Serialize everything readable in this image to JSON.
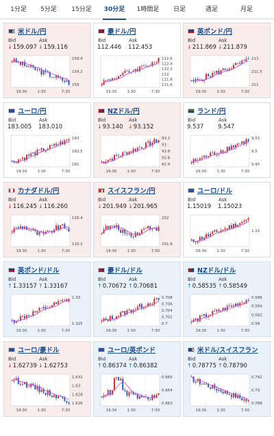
{
  "tabs": [
    {
      "label": "1分足",
      "active": false
    },
    {
      "label": "5分足",
      "active": false
    },
    {
      "label": "15分足",
      "active": false
    },
    {
      "label": "30分足",
      "active": true
    },
    {
      "label": "1時間足",
      "active": false
    },
    {
      "label": "日足",
      "active": false
    },
    {
      "label": "週足",
      "active": false
    },
    {
      "label": "月足",
      "active": false
    }
  ],
  "colors": {
    "accent": "#1a4d8f",
    "down_card": "#fbecec",
    "up_card": "#e9f2fb",
    "price_down": "#d23a3a",
    "price_up": "#2d6ccf",
    "candle_up": "#d62a2a",
    "candle_down": "#2a55c9",
    "moving_average": "#c24fcf"
  },
  "labels": {
    "bid": "Bid",
    "ask": "Ask"
  },
  "cards": [
    {
      "pair": "米ドル/円",
      "flag": "us",
      "state": "down",
      "direction": "down",
      "bid": "159.097",
      "ask": "159.116",
      "y_ticks": [
        "159.4",
        "159.2",
        "159"
      ],
      "x_ticks": [
        "19:30",
        "1:30",
        "7:30"
      ],
      "trend": "fall"
    },
    {
      "pair": "豪ドル/円",
      "flag": "au",
      "state": "neutral",
      "direction": "",
      "bid": "112.446",
      "ask": "112.453",
      "y_ticks": [
        "112.6",
        "112.4",
        "112.2",
        "112",
        "111.8",
        "111.6"
      ],
      "x_ticks": [
        "19:30",
        "1:30",
        "7:30"
      ],
      "trend": "rise"
    },
    {
      "pair": "英ポンド/円",
      "flag": "gb",
      "state": "down",
      "direction": "down",
      "bid": "211.869",
      "ask": "211.879",
      "y_ticks": [
        "212",
        "211.5",
        "211"
      ],
      "x_ticks": [
        "19:30",
        "1:30",
        "7:30"
      ],
      "trend": "rise"
    },
    {
      "pair": "ユーロ/円",
      "flag": "eu",
      "state": "neutral",
      "direction": "",
      "bid": "183.005",
      "ask": "183.010",
      "y_ticks": [
        "183",
        "182.5",
        "182"
      ],
      "x_ticks": [
        "19:30",
        "1:30",
        "7:30"
      ],
      "trend": "rise"
    },
    {
      "pair": "NZドル/円",
      "flag": "nz",
      "state": "down",
      "direction": "down",
      "bid": "93.140",
      "ask": "93.152",
      "y_ticks": [
        "93.2",
        "93",
        "92.8",
        "92.6",
        "92.4"
      ],
      "x_ticks": [
        "19:30",
        "1:30",
        "7:30"
      ],
      "trend": "rise"
    },
    {
      "pair": "ランド/円",
      "flag": "za",
      "state": "neutral",
      "direction": "",
      "bid": "9.537",
      "ask": "9.547",
      "y_ticks": [
        "9.55",
        "9.5",
        "9.45"
      ],
      "x_ticks": [
        "19:30",
        "1:30",
        "7:30"
      ],
      "trend": "rise"
    },
    {
      "pair": "カナダドル/円",
      "flag": "ca",
      "state": "down",
      "direction": "down",
      "bid": "116.245",
      "ask": "116.260",
      "y_ticks": [
        "116.4",
        "116.2"
      ],
      "x_ticks": [
        "19:30",
        "1:30",
        "7:30"
      ],
      "trend": "flat"
    },
    {
      "pair": "スイスフラン/円",
      "flag": "ch",
      "state": "down",
      "direction": "down",
      "bid": "201.949",
      "ask": "201.965",
      "y_ticks": [
        "202",
        "201.8"
      ],
      "x_ticks": [
        "19:30",
        "1:30",
        "7:30"
      ],
      "trend": "flat"
    },
    {
      "pair": "ユーロ/ドル",
      "flag": "eu",
      "state": "neutral",
      "direction": "",
      "bid": "1.15019",
      "ask": "1.15023",
      "y_ticks": [
        "1.15"
      ],
      "x_ticks": [
        "19:30",
        "1:30",
        "7:30"
      ],
      "trend": "rise"
    },
    {
      "pair": "英ポンド/ドル",
      "flag": "gb",
      "state": "up",
      "direction": "up",
      "bid": "1.33157",
      "ask": "1.33167",
      "y_ticks": [
        "1.33",
        "1.325"
      ],
      "x_ticks": [
        "19:30",
        "1:30",
        "7:30"
      ],
      "trend": "rise"
    },
    {
      "pair": "豪ドル/ドル",
      "flag": "au",
      "state": "up",
      "direction": "up",
      "bid": "0.70672",
      "ask": "0.70681",
      "y_ticks": [
        "0.708",
        "0.706",
        "0.704",
        "0.702",
        "0.7"
      ],
      "x_ticks": [
        "19:30",
        "1:30",
        "7:30"
      ],
      "trend": "rise"
    },
    {
      "pair": "NZドル/ドル",
      "flag": "nz",
      "state": "up",
      "direction": "up",
      "bid": "0.58535",
      "ask": "0.58549",
      "y_ticks": [
        "0.586",
        "0.584",
        "0.582",
        "0.58"
      ],
      "x_ticks": [
        "19:30",
        "1:30",
        "7:30"
      ],
      "trend": "rise"
    },
    {
      "pair": "ユーロ/豪ドル",
      "flag": "eu",
      "state": "down",
      "direction": "down",
      "bid": "1.62739",
      "ask": "1.62753",
      "y_ticks": [
        "1.632",
        "1.63",
        "1.628",
        "1.626"
      ],
      "x_ticks": [
        "19:30",
        "1:30",
        "7:30"
      ],
      "trend": "fall"
    },
    {
      "pair": "ユーロ/英ポンド",
      "flag": "eu",
      "state": "up",
      "direction": "up",
      "bid": "0.86374",
      "ask": "0.86382",
      "y_ticks": [
        "0.865",
        "0.864",
        "0.863"
      ],
      "x_ticks": [
        "19:30",
        "1:30",
        "7:30"
      ],
      "trend": "spike"
    },
    {
      "pair": "米ドル/スイスフラン",
      "flag": "us",
      "state": "up",
      "direction": "up",
      "bid": "0.78775",
      "ask": "0.78790",
      "y_ticks": [
        "0.792",
        "0.79",
        "0.788"
      ],
      "x_ticks": [
        "19:30",
        "1:30",
        "7:30"
      ],
      "trend": "fall"
    }
  ]
}
